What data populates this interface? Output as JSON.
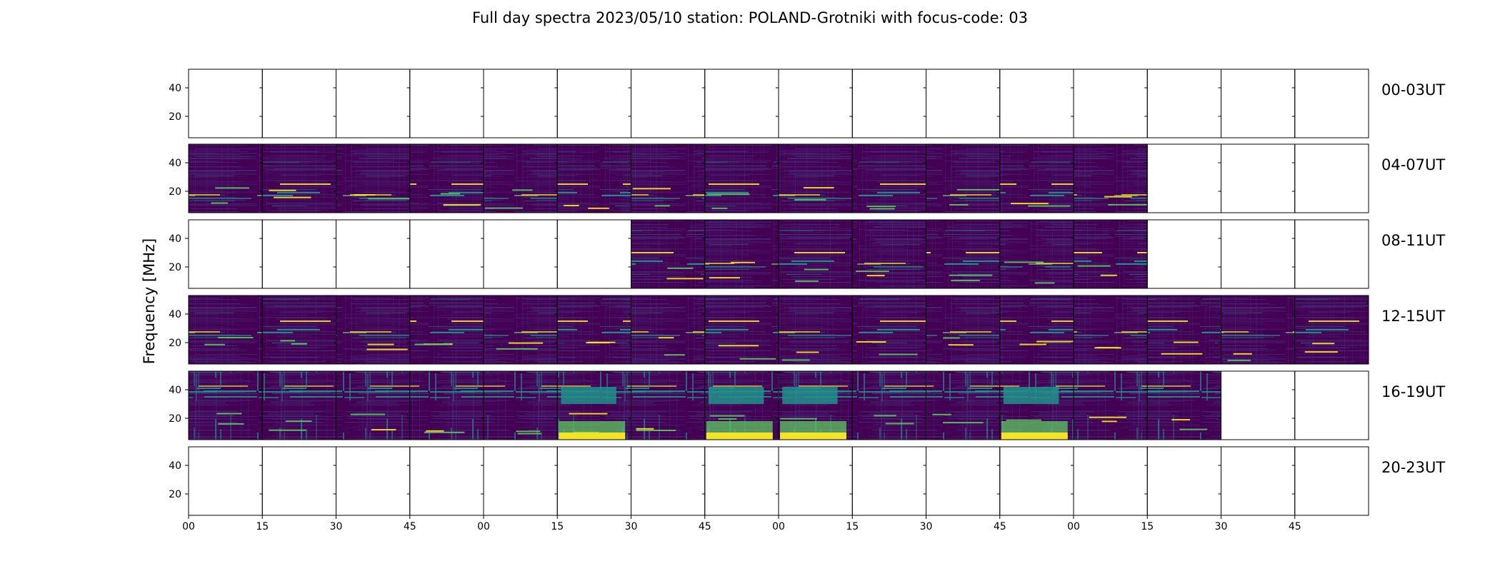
{
  "chart_data": {
    "type": "heatmap",
    "title": "Full day spectra 2023/05/10 station: POLAND-Grotniki with focus-code: 03",
    "ylabel": "Frequency [MHz]",
    "xlabel": "",
    "y_ticks": [
      20,
      40
    ],
    "ylim": [
      5,
      53
    ],
    "x_tick_labels": [
      "00",
      "15",
      "30",
      "45",
      "00",
      "15",
      "30",
      "45",
      "00",
      "15",
      "30",
      "45",
      "00",
      "15",
      "30",
      "45"
    ],
    "segments_per_row": 16,
    "segment_minutes": 15,
    "colormap": "viridis",
    "rows": [
      {
        "label": "00-03UT",
        "segments_with_data": []
      },
      {
        "label": "04-07UT",
        "segments_with_data": [
          0,
          1,
          2,
          3,
          4,
          5,
          6,
          7,
          8,
          9,
          10,
          11,
          12
        ]
      },
      {
        "label": "08-11UT",
        "segments_with_data": [
          6,
          7,
          8,
          9,
          10,
          11,
          12
        ]
      },
      {
        "label": "12-15UT",
        "segments_with_data": [
          0,
          1,
          2,
          3,
          4,
          5,
          6,
          7,
          8,
          9,
          10,
          11,
          12,
          13,
          14,
          15
        ]
      },
      {
        "label": "16-19UT",
        "segments_with_data": [
          0,
          1,
          2,
          3,
          4,
          5,
          6,
          7,
          8,
          9,
          10,
          11,
          12,
          13
        ]
      },
      {
        "label": "20-23UT",
        "segments_with_data": []
      }
    ],
    "strong_emission_segments": [
      {
        "row": 4,
        "segment": 5
      },
      {
        "row": 4,
        "segment": 7
      },
      {
        "row": 4,
        "segment": 8
      },
      {
        "row": 4,
        "segment": 11
      }
    ]
  },
  "colors": {
    "background": "#440154",
    "low": "#472d7b",
    "mid": "#21918c",
    "high": "#5ec962",
    "peak": "#fde725",
    "frame": "#000000"
  }
}
